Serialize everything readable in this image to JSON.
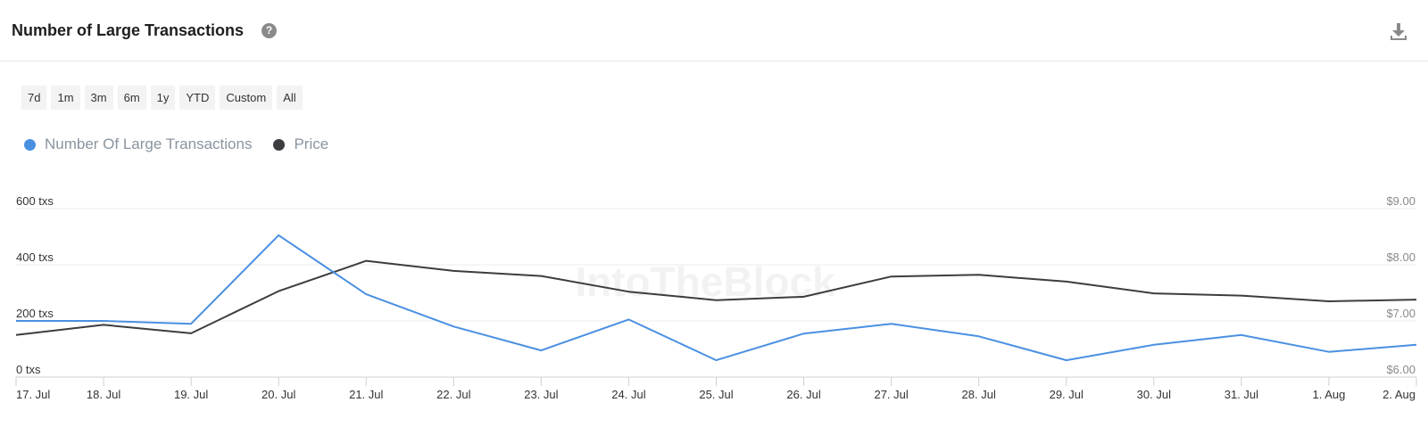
{
  "header": {
    "title": "Number of Large Transactions",
    "help_glyph": "?",
    "help_icon": "question-circle-icon",
    "download_icon": "download-icon"
  },
  "ranges": [
    "7d",
    "1m",
    "3m",
    "6m",
    "1y",
    "YTD",
    "Custom",
    "All"
  ],
  "legend": [
    {
      "label": "Number Of Large Transactions",
      "color": "#4a90e2"
    },
    {
      "label": "Price",
      "color": "#3b3d40"
    }
  ],
  "watermark": "IntoTheBlock",
  "chart_data": {
    "type": "line",
    "categories": [
      "17. Jul",
      "18. Jul",
      "19. Jul",
      "20. Jul",
      "21. Jul",
      "22. Jul",
      "23. Jul",
      "24. Jul",
      "25. Jul",
      "26. Jul",
      "27. Jul",
      "28. Jul",
      "29. Jul",
      "30. Jul",
      "31. Jul",
      "1. Aug",
      "2. Aug"
    ],
    "left_axis": {
      "ticks": [
        0,
        200,
        400,
        600
      ],
      "labels": [
        "0 txs",
        "200 txs",
        "400 txs",
        "600 txs"
      ],
      "range": [
        0,
        600
      ]
    },
    "right_axis": {
      "ticks": [
        6,
        7,
        8,
        9
      ],
      "labels": [
        "$6.00",
        "$7.00",
        "$8.00",
        "$9.00"
      ],
      "range": [
        6,
        9
      ]
    },
    "series": [
      {
        "name": "Number Of Large Transactions",
        "axis": "left",
        "color": "#4a90e2",
        "values": [
          200,
          200,
          190,
          505,
          295,
          180,
          95,
          205,
          60,
          155,
          190,
          145,
          60,
          115,
          150,
          90,
          115
        ]
      },
      {
        "name": "Price",
        "axis": "right",
        "color": "#3b3d40",
        "values": [
          6.75,
          6.93,
          6.78,
          7.53,
          8.07,
          7.89,
          7.8,
          7.52,
          7.37,
          7.43,
          7.79,
          7.82,
          7.7,
          7.49,
          7.45,
          7.35,
          7.38
        ]
      }
    ],
    "grid": true,
    "legend_position": "top-left"
  }
}
